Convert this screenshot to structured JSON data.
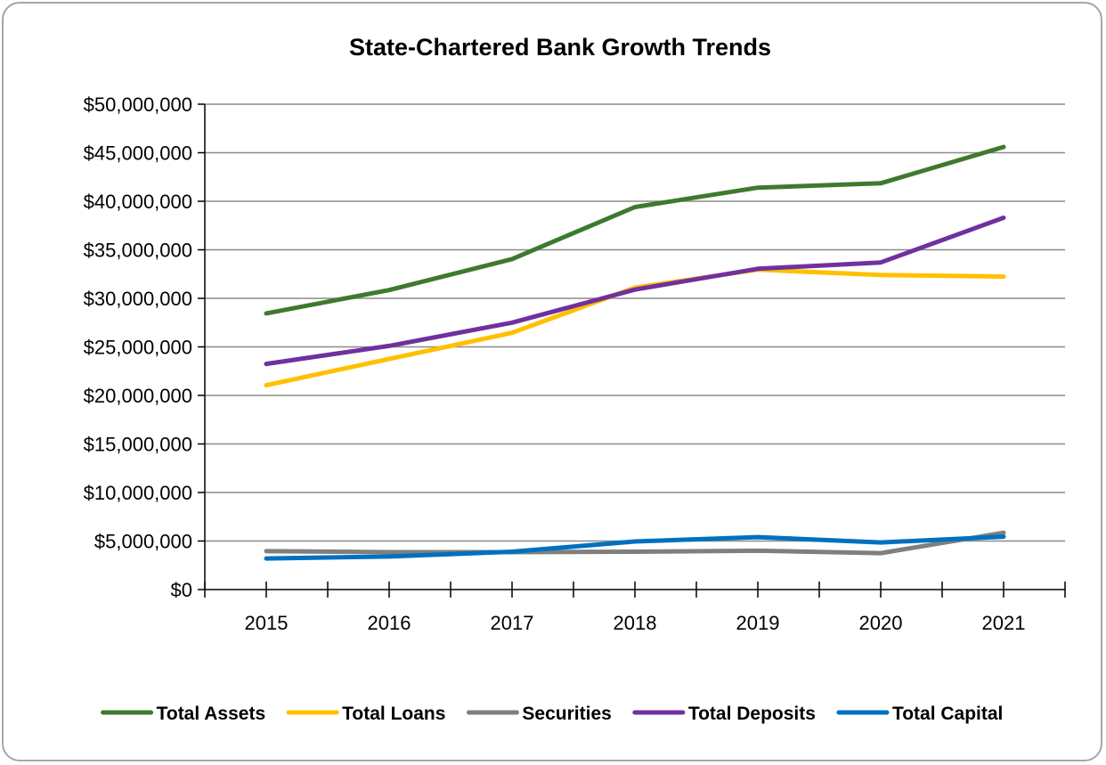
{
  "chart_data": {
    "type": "line",
    "title": "State-Chartered Bank Growth Trends",
    "xlabel": "",
    "ylabel": "",
    "categories": [
      "2015",
      "2016",
      "2017",
      "2018",
      "2019",
      "2020",
      "2021"
    ],
    "ylim": [
      0,
      50000000
    ],
    "y_ticks": [
      0,
      5000000,
      10000000,
      15000000,
      20000000,
      25000000,
      30000000,
      35000000,
      40000000,
      45000000,
      50000000
    ],
    "y_tick_labels": [
      "$0",
      "$5,000,000",
      "$10,000,000",
      "$15,000,000",
      "$20,000,000",
      "$25,000,000",
      "$30,000,000",
      "$35,000,000",
      "$40,000,000",
      "$45,000,000",
      "$50,000,000"
    ],
    "grid": true,
    "legend_position": "bottom",
    "series": [
      {
        "name": "Total Assets",
        "color": "#3e7a2e",
        "values": [
          28450000,
          30850000,
          34050000,
          39400000,
          41400000,
          41850000,
          45600000
        ]
      },
      {
        "name": "Total Loans",
        "color": "#ffc000",
        "values": [
          21050000,
          23750000,
          26450000,
          31100000,
          32950000,
          32400000,
          32250000
        ]
      },
      {
        "name": "Securities",
        "color": "#7f7f7f",
        "values": [
          3950000,
          3850000,
          3850000,
          3900000,
          4000000,
          3750000,
          5850000
        ]
      },
      {
        "name": "Total Deposits",
        "color": "#7030a0",
        "values": [
          23250000,
          25100000,
          27500000,
          30900000,
          33050000,
          33700000,
          38300000
        ]
      },
      {
        "name": "Total Capital",
        "color": "#0070c0",
        "values": [
          3200000,
          3400000,
          3900000,
          4950000,
          5400000,
          4850000,
          5450000
        ]
      }
    ]
  }
}
